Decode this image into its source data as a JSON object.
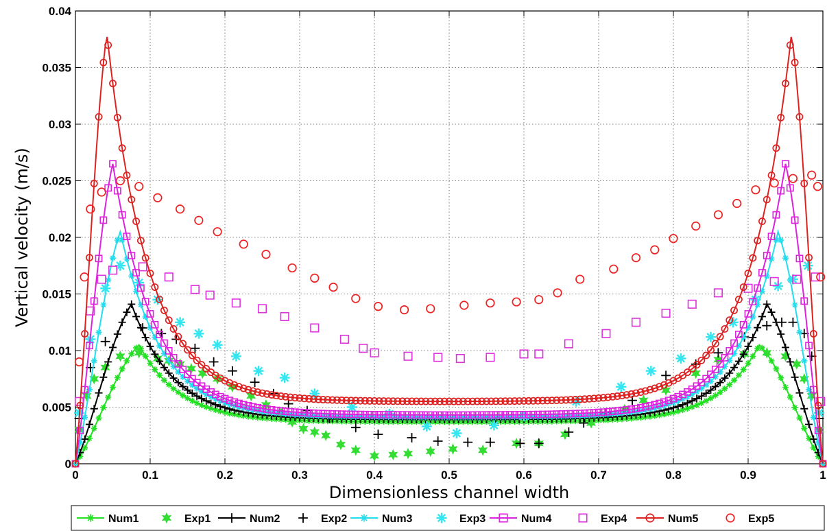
{
  "chart_data": {
    "type": "line",
    "title": "",
    "xlabel": "Dimensionless channel width",
    "ylabel": "Vertical velocity (m/s)",
    "xlim": [
      0,
      1
    ],
    "ylim": [
      0,
      0.04
    ],
    "x_ticks": [
      "0",
      "0.1",
      "0.2",
      "0.3",
      "0.4",
      "0.5",
      "0.6",
      "0.7",
      "0.8",
      "0.9",
      "1"
    ],
    "y_ticks": [
      "0",
      "0.005",
      "0.01",
      "0.015",
      "0.02",
      "0.025",
      "0.03",
      "0.035",
      "0.04"
    ],
    "grid": true,
    "legend_position": "bottom",
    "series": [
      {
        "name": "Num1",
        "kind": "line",
        "color": "#22e022",
        "marker": "star",
        "peak_x": 0.085,
        "peak_y": 0.0105,
        "min_y": 0.0037
      },
      {
        "name": "Exp1",
        "kind": "markers",
        "color": "#33dd33",
        "marker": "hexastar",
        "points": [
          [
            0.005,
            0.003
          ],
          [
            0.015,
            0.006
          ],
          [
            0.025,
            0.0075
          ],
          [
            0.04,
            0.0085
          ],
          [
            0.06,
            0.0095
          ],
          [
            0.085,
            0.0098
          ],
          [
            0.11,
            0.0093
          ],
          [
            0.125,
            0.0091
          ],
          [
            0.14,
            0.0088
          ],
          [
            0.155,
            0.0084
          ],
          [
            0.17,
            0.008
          ],
          [
            0.19,
            0.0075
          ],
          [
            0.21,
            0.0068
          ],
          [
            0.235,
            0.006
          ],
          [
            0.255,
            0.0052
          ],
          [
            0.275,
            0.0045
          ],
          [
            0.29,
            0.0037
          ],
          [
            0.305,
            0.0031
          ],
          [
            0.32,
            0.0028
          ],
          [
            0.335,
            0.0025
          ],
          [
            0.355,
            0.0017
          ],
          [
            0.375,
            0.0012
          ],
          [
            0.4,
            0.0007
          ],
          [
            0.425,
            0.0008
          ],
          [
            0.445,
            0.0009
          ],
          [
            0.475,
            0.0011
          ],
          [
            0.505,
            0.0013
          ],
          [
            0.545,
            0.0012
          ],
          [
            0.59,
            0.0018
          ],
          [
            0.62,
            0.0018
          ],
          [
            0.655,
            0.0026
          ],
          [
            0.69,
            0.0036
          ],
          [
            0.71,
            0.0042
          ],
          [
            0.735,
            0.0048
          ],
          [
            0.76,
            0.0056
          ],
          [
            0.79,
            0.0065
          ],
          [
            0.83,
            0.008
          ],
          [
            0.86,
            0.0092
          ],
          [
            0.895,
            0.0097
          ],
          [
            0.925,
            0.0098
          ],
          [
            0.95,
            0.0095
          ],
          [
            0.965,
            0.0088
          ],
          [
            0.975,
            0.0075
          ],
          [
            0.985,
            0.006
          ],
          [
            0.995,
            0.003
          ]
        ]
      },
      {
        "name": "Num2",
        "kind": "line",
        "color": "#000000",
        "marker": "plus",
        "peak_x": 0.075,
        "peak_y": 0.0141,
        "min_y": 0.0039
      },
      {
        "name": "Exp2",
        "kind": "markers",
        "color": "#000000",
        "marker": "plus",
        "points": [
          [
            0.005,
            0.004
          ],
          [
            0.02,
            0.0085
          ],
          [
            0.04,
            0.0108
          ],
          [
            0.09,
            0.012
          ],
          [
            0.115,
            0.0115
          ],
          [
            0.135,
            0.011
          ],
          [
            0.16,
            0.0102
          ],
          [
            0.185,
            0.009
          ],
          [
            0.21,
            0.0082
          ],
          [
            0.24,
            0.0072
          ],
          [
            0.265,
            0.0062
          ],
          [
            0.285,
            0.0053
          ],
          [
            0.31,
            0.0047
          ],
          [
            0.34,
            0.004
          ],
          [
            0.375,
            0.0032
          ],
          [
            0.405,
            0.0026
          ],
          [
            0.45,
            0.0023
          ],
          [
            0.485,
            0.002
          ],
          [
            0.525,
            0.0019
          ],
          [
            0.555,
            0.0019
          ],
          [
            0.595,
            0.0018
          ],
          [
            0.62,
            0.0018
          ],
          [
            0.66,
            0.0028
          ],
          [
            0.68,
            0.0036
          ],
          [
            0.71,
            0.0045
          ],
          [
            0.745,
            0.0056
          ],
          [
            0.79,
            0.0078
          ],
          [
            0.83,
            0.0088
          ],
          [
            0.86,
            0.0098
          ],
          [
            0.895,
            0.0112
          ],
          [
            0.925,
            0.0122
          ],
          [
            0.945,
            0.0125
          ],
          [
            0.96,
            0.0125
          ],
          [
            0.975,
            0.0115
          ],
          [
            0.985,
            0.0095
          ],
          [
            0.995,
            0.004
          ]
        ]
      },
      {
        "name": "Num3",
        "kind": "line",
        "color": "#22ddee",
        "marker": "star",
        "peak_x": 0.06,
        "peak_y": 0.0205,
        "min_y": 0.0041
      },
      {
        "name": "Exp3",
        "kind": "markers",
        "color": "#33e6f0",
        "marker": "asterisk",
        "points": [
          [
            0.005,
            0.0045
          ],
          [
            0.02,
            0.011
          ],
          [
            0.04,
            0.0155
          ],
          [
            0.06,
            0.0175
          ],
          [
            0.085,
            0.016
          ],
          [
            0.11,
            0.0145
          ],
          [
            0.14,
            0.0125
          ],
          [
            0.165,
            0.0115
          ],
          [
            0.19,
            0.0105
          ],
          [
            0.215,
            0.0095
          ],
          [
            0.245,
            0.0082
          ],
          [
            0.28,
            0.0076
          ],
          [
            0.32,
            0.0062
          ],
          [
            0.37,
            0.005
          ],
          [
            0.42,
            0.0044
          ],
          [
            0.47,
            0.0033
          ],
          [
            0.51,
            0.0027
          ],
          [
            0.56,
            0.0034
          ],
          [
            0.6,
            0.0042
          ],
          [
            0.67,
            0.0055
          ],
          [
            0.73,
            0.0068
          ],
          [
            0.77,
            0.0082
          ],
          [
            0.81,
            0.0093
          ],
          [
            0.85,
            0.0112
          ],
          [
            0.88,
            0.0125
          ],
          [
            0.91,
            0.0145
          ],
          [
            0.94,
            0.0157
          ],
          [
            0.96,
            0.0163
          ],
          [
            0.98,
            0.0175
          ],
          [
            0.995,
            0.0045
          ]
        ]
      },
      {
        "name": "Num4",
        "kind": "line",
        "color": "#dd22dd",
        "marker": "square",
        "peak_x": 0.05,
        "peak_y": 0.0265,
        "min_y": 0.0043
      },
      {
        "name": "Exp4",
        "kind": "markers",
        "color": "#dd33dd",
        "marker": "square",
        "points": [
          [
            0.005,
            0.0055
          ],
          [
            0.02,
            0.0135
          ],
          [
            0.035,
            0.0163
          ],
          [
            0.05,
            0.0171
          ],
          [
            0.09,
            0.0174
          ],
          [
            0.125,
            0.0165
          ],
          [
            0.16,
            0.0154
          ],
          [
            0.18,
            0.0149
          ],
          [
            0.215,
            0.0142
          ],
          [
            0.25,
            0.0137
          ],
          [
            0.28,
            0.013
          ],
          [
            0.32,
            0.012
          ],
          [
            0.36,
            0.011
          ],
          [
            0.385,
            0.0102
          ],
          [
            0.4,
            0.0098
          ],
          [
            0.445,
            0.0095
          ],
          [
            0.485,
            0.0094
          ],
          [
            0.515,
            0.0093
          ],
          [
            0.555,
            0.0094
          ],
          [
            0.6,
            0.0097
          ],
          [
            0.62,
            0.0097
          ],
          [
            0.66,
            0.0106
          ],
          [
            0.71,
            0.0115
          ],
          [
            0.75,
            0.0125
          ],
          [
            0.79,
            0.0133
          ],
          [
            0.825,
            0.0141
          ],
          [
            0.86,
            0.0151
          ],
          [
            0.9,
            0.0155
          ],
          [
            0.935,
            0.0161
          ],
          [
            0.965,
            0.0163
          ],
          [
            0.99,
            0.0165
          ],
          [
            0.997,
            0.0055
          ]
        ]
      },
      {
        "name": "Num5",
        "kind": "line",
        "color": "#dd2222",
        "marker": "circle",
        "peak_x": 0.042,
        "peak_y": 0.038,
        "min_y": 0.0055
      },
      {
        "name": "Exp5",
        "kind": "markers",
        "color": "#ee2222",
        "marker": "circle",
        "points": [
          [
            0.005,
            0.009
          ],
          [
            0.012,
            0.0165
          ],
          [
            0.02,
            0.0225
          ],
          [
            0.035,
            0.024
          ],
          [
            0.06,
            0.025
          ],
          [
            0.085,
            0.0245
          ],
          [
            0.11,
            0.0235
          ],
          [
            0.14,
            0.0225
          ],
          [
            0.165,
            0.0215
          ],
          [
            0.19,
            0.0205
          ],
          [
            0.225,
            0.0194
          ],
          [
            0.255,
            0.0185
          ],
          [
            0.29,
            0.0173
          ],
          [
            0.32,
            0.0164
          ],
          [
            0.345,
            0.0156
          ],
          [
            0.375,
            0.0146
          ],
          [
            0.405,
            0.0139
          ],
          [
            0.44,
            0.0136
          ],
          [
            0.475,
            0.0137
          ],
          [
            0.52,
            0.014
          ],
          [
            0.555,
            0.0142
          ],
          [
            0.59,
            0.0143
          ],
          [
            0.62,
            0.0145
          ],
          [
            0.645,
            0.0151
          ],
          [
            0.675,
            0.0163
          ],
          [
            0.72,
            0.0172
          ],
          [
            0.75,
            0.0182
          ],
          [
            0.775,
            0.0189
          ],
          [
            0.8,
            0.0199
          ],
          [
            0.83,
            0.021
          ],
          [
            0.86,
            0.022
          ],
          [
            0.885,
            0.023
          ],
          [
            0.91,
            0.0242
          ],
          [
            0.935,
            0.0248
          ],
          [
            0.96,
            0.0252
          ],
          [
            0.985,
            0.0255
          ],
          [
            0.993,
            0.0245
          ],
          [
            0.997,
            0.0165
          ]
        ]
      }
    ]
  }
}
